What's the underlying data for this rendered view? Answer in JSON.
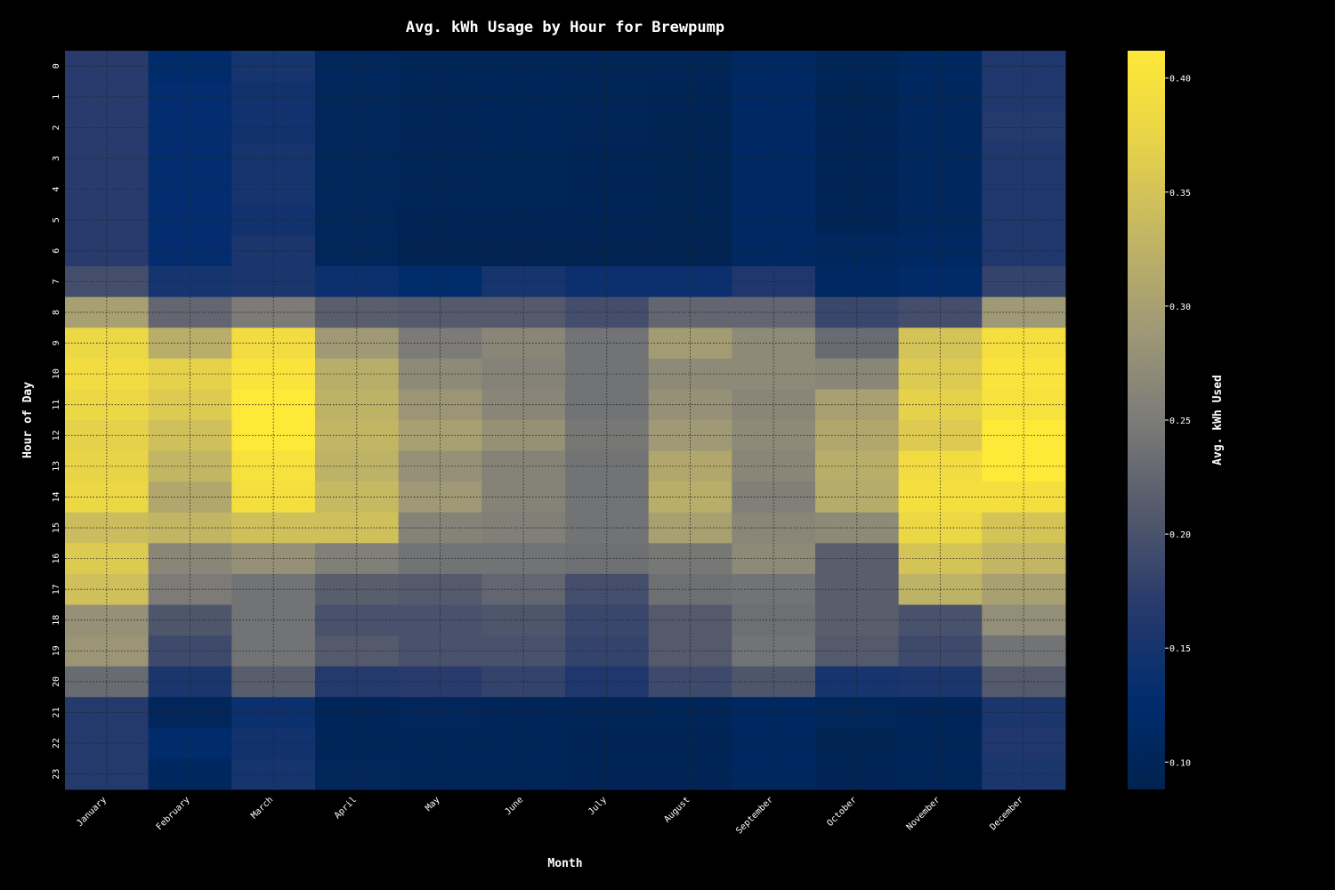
{
  "chart_data": {
    "type": "heatmap",
    "title": "Avg. kWh Usage by Hour for Brewpump",
    "xlabel": "Month",
    "ylabel": "Hour of Day",
    "colorbar_label": "Avg. kWh Used",
    "colormap": "cividis",
    "color_range": [
      0.088,
      0.412
    ],
    "colorbar_ticks": [
      "0.10",
      "0.15",
      "0.20",
      "0.25",
      "0.30",
      "0.35",
      "0.40"
    ],
    "grid": true,
    "months": [
      "January",
      "February",
      "March",
      "April",
      "May",
      "June",
      "July",
      "August",
      "September",
      "October",
      "November",
      "December"
    ],
    "hours": [
      "0",
      "1",
      "2",
      "3",
      "4",
      "5",
      "6",
      "7",
      "8",
      "9",
      "10",
      "11",
      "12",
      "13",
      "14",
      "15",
      "16",
      "17",
      "18",
      "19",
      "20",
      "21",
      "22",
      "23"
    ],
    "values": [
      [
        0.17,
        0.125,
        0.15,
        0.105,
        0.1,
        0.1,
        0.098,
        0.098,
        0.115,
        0.1,
        0.11,
        0.16
      ],
      [
        0.17,
        0.13,
        0.145,
        0.103,
        0.098,
        0.1,
        0.098,
        0.096,
        0.115,
        0.095,
        0.108,
        0.16
      ],
      [
        0.17,
        0.13,
        0.145,
        0.103,
        0.098,
        0.1,
        0.098,
        0.095,
        0.115,
        0.096,
        0.108,
        0.165
      ],
      [
        0.17,
        0.13,
        0.15,
        0.103,
        0.098,
        0.099,
        0.097,
        0.095,
        0.115,
        0.096,
        0.108,
        0.16
      ],
      [
        0.17,
        0.13,
        0.15,
        0.103,
        0.098,
        0.099,
        0.096,
        0.095,
        0.115,
        0.096,
        0.108,
        0.16
      ],
      [
        0.17,
        0.13,
        0.145,
        0.103,
        0.096,
        0.097,
        0.096,
        0.095,
        0.115,
        0.096,
        0.108,
        0.16
      ],
      [
        0.17,
        0.13,
        0.155,
        0.103,
        0.092,
        0.092,
        0.092,
        0.092,
        0.115,
        0.108,
        0.112,
        0.16
      ],
      [
        0.195,
        0.15,
        0.155,
        0.14,
        0.125,
        0.15,
        0.14,
        0.14,
        0.16,
        0.112,
        0.12,
        0.18
      ],
      [
        0.3,
        0.225,
        0.25,
        0.215,
        0.21,
        0.21,
        0.195,
        0.225,
        0.225,
        0.185,
        0.195,
        0.29
      ],
      [
        0.38,
        0.32,
        0.39,
        0.29,
        0.25,
        0.265,
        0.24,
        0.295,
        0.27,
        0.23,
        0.35,
        0.395
      ],
      [
        0.39,
        0.37,
        0.405,
        0.32,
        0.27,
        0.26,
        0.24,
        0.27,
        0.27,
        0.265,
        0.36,
        0.405
      ],
      [
        0.38,
        0.36,
        0.412,
        0.325,
        0.285,
        0.265,
        0.24,
        0.28,
        0.265,
        0.3,
        0.37,
        0.4
      ],
      [
        0.37,
        0.345,
        0.412,
        0.33,
        0.3,
        0.28,
        0.245,
        0.29,
        0.27,
        0.31,
        0.36,
        0.412
      ],
      [
        0.375,
        0.33,
        0.4,
        0.325,
        0.28,
        0.26,
        0.24,
        0.31,
        0.265,
        0.32,
        0.39,
        0.412
      ],
      [
        0.38,
        0.31,
        0.395,
        0.335,
        0.29,
        0.26,
        0.24,
        0.32,
        0.255,
        0.315,
        0.395,
        0.395
      ],
      [
        0.34,
        0.33,
        0.345,
        0.345,
        0.26,
        0.255,
        0.24,
        0.3,
        0.265,
        0.27,
        0.38,
        0.35
      ],
      [
        0.36,
        0.265,
        0.28,
        0.255,
        0.24,
        0.24,
        0.235,
        0.245,
        0.27,
        0.215,
        0.35,
        0.33
      ],
      [
        0.345,
        0.25,
        0.24,
        0.215,
        0.21,
        0.225,
        0.195,
        0.235,
        0.24,
        0.215,
        0.325,
        0.3
      ],
      [
        0.28,
        0.205,
        0.24,
        0.2,
        0.2,
        0.205,
        0.185,
        0.21,
        0.235,
        0.215,
        0.2,
        0.275
      ],
      [
        0.285,
        0.19,
        0.24,
        0.21,
        0.2,
        0.2,
        0.18,
        0.21,
        0.24,
        0.21,
        0.19,
        0.24
      ],
      [
        0.23,
        0.155,
        0.215,
        0.165,
        0.17,
        0.18,
        0.16,
        0.19,
        0.205,
        0.15,
        0.155,
        0.21
      ],
      [
        0.165,
        0.105,
        0.14,
        0.1,
        0.105,
        0.1,
        0.098,
        0.1,
        0.11,
        0.102,
        0.1,
        0.155
      ],
      [
        0.165,
        0.125,
        0.145,
        0.1,
        0.1,
        0.1,
        0.096,
        0.097,
        0.11,
        0.095,
        0.1,
        0.16
      ],
      [
        0.165,
        0.11,
        0.15,
        0.102,
        0.1,
        0.1,
        0.097,
        0.097,
        0.11,
        0.096,
        0.1,
        0.155
      ]
    ]
  }
}
